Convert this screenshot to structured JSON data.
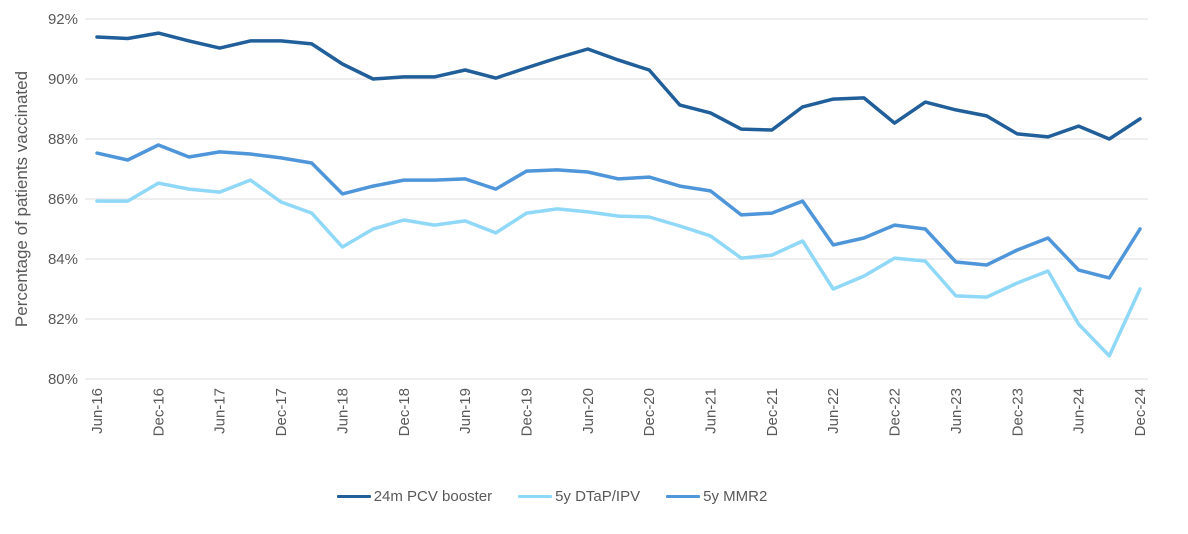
{
  "chart_data": {
    "type": "line",
    "title": "",
    "xlabel": "",
    "ylabel": "Percentage of patients vaccinated",
    "ylim": [
      80,
      92
    ],
    "y_ticks": [
      "80%",
      "82%",
      "84%",
      "86%",
      "88%",
      "90%",
      "92%"
    ],
    "y_tick_values": [
      80,
      82,
      84,
      86,
      88,
      90,
      92
    ],
    "grid": true,
    "legend_position": "bottom",
    "x_tick_labels": [
      "Jun-16",
      "Dec-16",
      "Jun-17",
      "Dec-17",
      "Jun-18",
      "Dec-18",
      "Jun-19",
      "Dec-19",
      "Jun-20",
      "Dec-20",
      "Jun-21",
      "Dec-21",
      "Jun-22",
      "Dec-22",
      "Jun-23",
      "Dec-23",
      "Jun-24",
      "Dec-24"
    ],
    "x": [
      "Jun-16",
      "Sep-16",
      "Dec-16",
      "Mar-17",
      "Jun-17",
      "Sep-17",
      "Dec-17",
      "Mar-18",
      "Jun-18",
      "Sep-18",
      "Dec-18",
      "Mar-19",
      "Jun-19",
      "Sep-19",
      "Dec-19",
      "Mar-20",
      "Jun-20",
      "Sep-20",
      "Dec-20",
      "Mar-21",
      "Jun-21",
      "Sep-21",
      "Dec-21",
      "Mar-22",
      "Jun-22",
      "Sep-22",
      "Dec-22",
      "Mar-23",
      "Jun-23",
      "Sep-23",
      "Dec-23",
      "Mar-24",
      "Jun-24",
      "Sep-24",
      "Dec-24"
    ],
    "series": [
      {
        "name": "24m PCV booster",
        "color": "#215F9A",
        "values": [
          91.4,
          91.35,
          91.53,
          91.27,
          91.03,
          91.27,
          91.27,
          91.17,
          90.5,
          90.0,
          90.07,
          90.07,
          90.3,
          90.03,
          90.37,
          90.7,
          91.0,
          90.63,
          90.3,
          89.13,
          88.87,
          88.33,
          88.3,
          89.07,
          89.33,
          89.37,
          88.53,
          89.23,
          88.97,
          88.77,
          88.17,
          88.07,
          88.43,
          88.0,
          88.67
        ]
      },
      {
        "name": "5y DTaP/IPV",
        "color": "#8FD8F8",
        "values": [
          85.93,
          85.93,
          86.53,
          86.33,
          86.23,
          86.63,
          85.9,
          85.53,
          84.4,
          85.0,
          85.3,
          85.13,
          85.27,
          84.87,
          85.53,
          85.67,
          85.57,
          85.43,
          85.4,
          85.1,
          84.77,
          84.03,
          84.13,
          84.6,
          83.0,
          83.43,
          84.03,
          83.93,
          82.77,
          82.73,
          83.2,
          83.6,
          81.83,
          80.77,
          83.0
        ]
      },
      {
        "name": "5y MMR2",
        "color": "#4E95D9",
        "values": [
          87.53,
          87.3,
          87.8,
          87.4,
          87.57,
          87.5,
          87.37,
          87.2,
          86.17,
          86.43,
          86.63,
          86.63,
          86.67,
          86.33,
          86.93,
          86.97,
          86.9,
          86.67,
          86.73,
          86.43,
          86.27,
          85.47,
          85.53,
          85.93,
          84.47,
          84.7,
          85.13,
          85.0,
          83.9,
          83.8,
          84.3,
          84.7,
          83.63,
          83.37,
          85.0
        ]
      }
    ]
  }
}
